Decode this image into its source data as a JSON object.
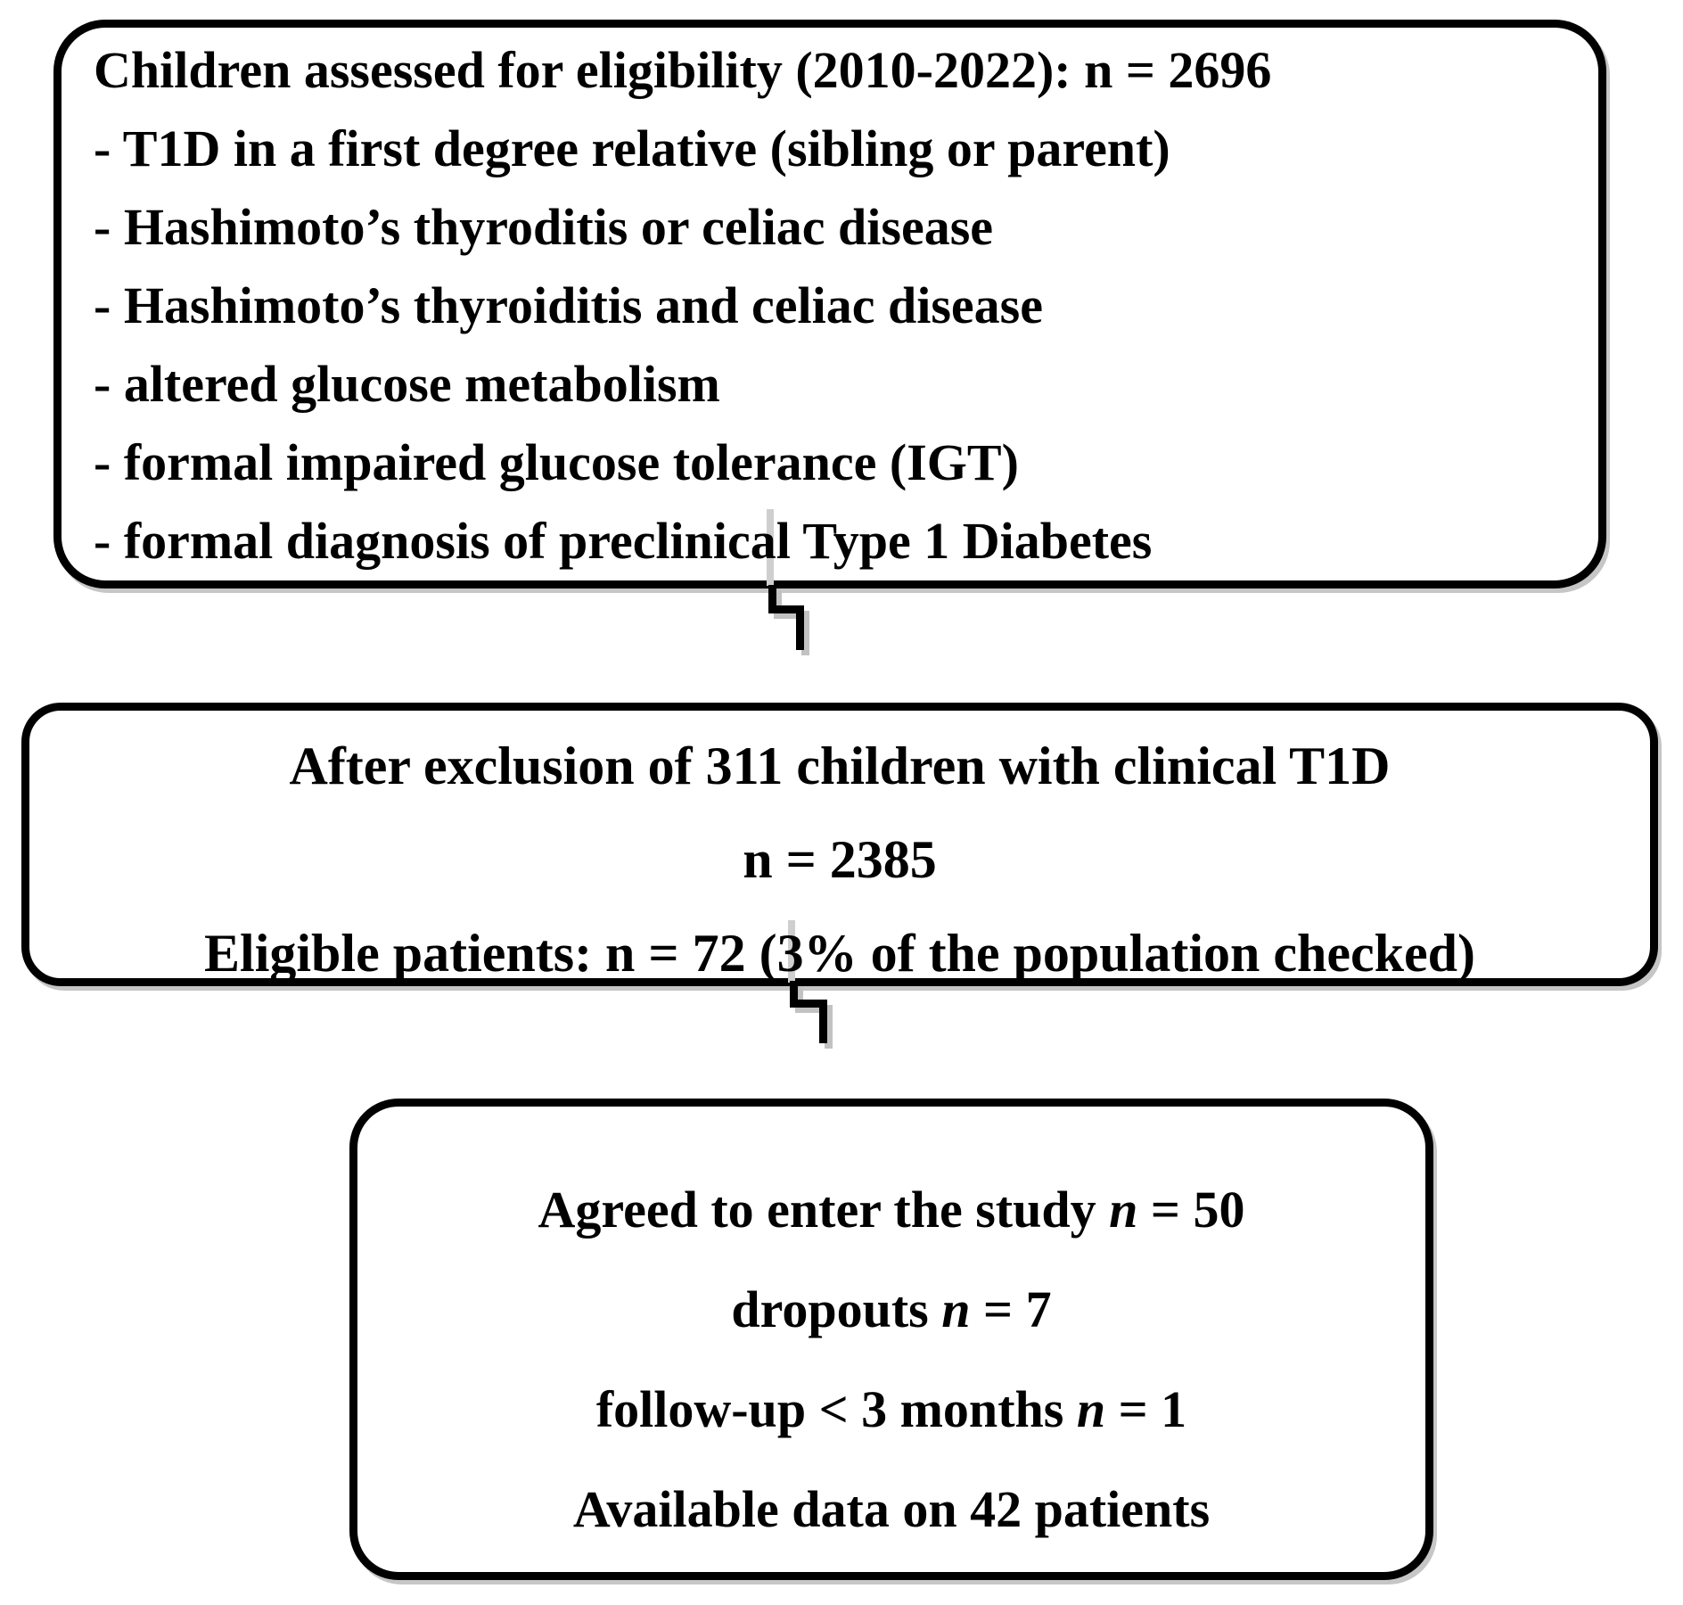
{
  "figure": {
    "background_color": "#ffffff",
    "ink_color": "#000000",
    "shadow_color": "#c2c2c2",
    "boxes": [
      {
        "name": "assessed-for-eligibility-box",
        "align": "left",
        "lines": [
          [
            {
              "t": "Children assessed for eligibility (2010-2022): n = 2696"
            }
          ],
          [
            {
              "t": "- T1D in a first degree relative (sibling or parent)"
            }
          ],
          [
            {
              "t": "- Hashimoto’s thyroditis or celiac disease"
            }
          ],
          [
            {
              "t": "- Hashimoto’s thyroiditis and celiac disease"
            }
          ],
          [
            {
              "t": "- altered glucose metabolism"
            }
          ],
          [
            {
              "t": "- formal impaired glucose tolerance (IGT)"
            }
          ],
          [
            {
              "t": "- formal diagnosis of preclinical Type 1 Diabetes"
            }
          ]
        ]
      },
      {
        "name": "after-exclusion-box",
        "align": "center",
        "lines": [
          [
            {
              "t": "After exclusion of 311 children with clinical T1D"
            }
          ],
          [
            {
              "t": "n = 2385"
            }
          ],
          [
            {
              "t": "Eligible patients: n = 72 (3% of the population checked)"
            }
          ]
        ]
      },
      {
        "name": "study-enrollment-box",
        "align": "center",
        "lines": [
          [
            {
              "t": "Agreed to enter the study "
            },
            {
              "t": "n",
              "i": true
            },
            {
              "t": " = 50"
            }
          ],
          [
            {
              "t": "dropouts "
            },
            {
              "t": "n",
              "i": true
            },
            {
              "t": " = 7"
            }
          ],
          [
            {
              "t": "follow-up < 3 months "
            },
            {
              "t": "n",
              "i": true
            },
            {
              "t": " = 1"
            }
          ],
          [
            {
              "t": "Available data on 42 patients"
            }
          ]
        ]
      }
    ]
  }
}
